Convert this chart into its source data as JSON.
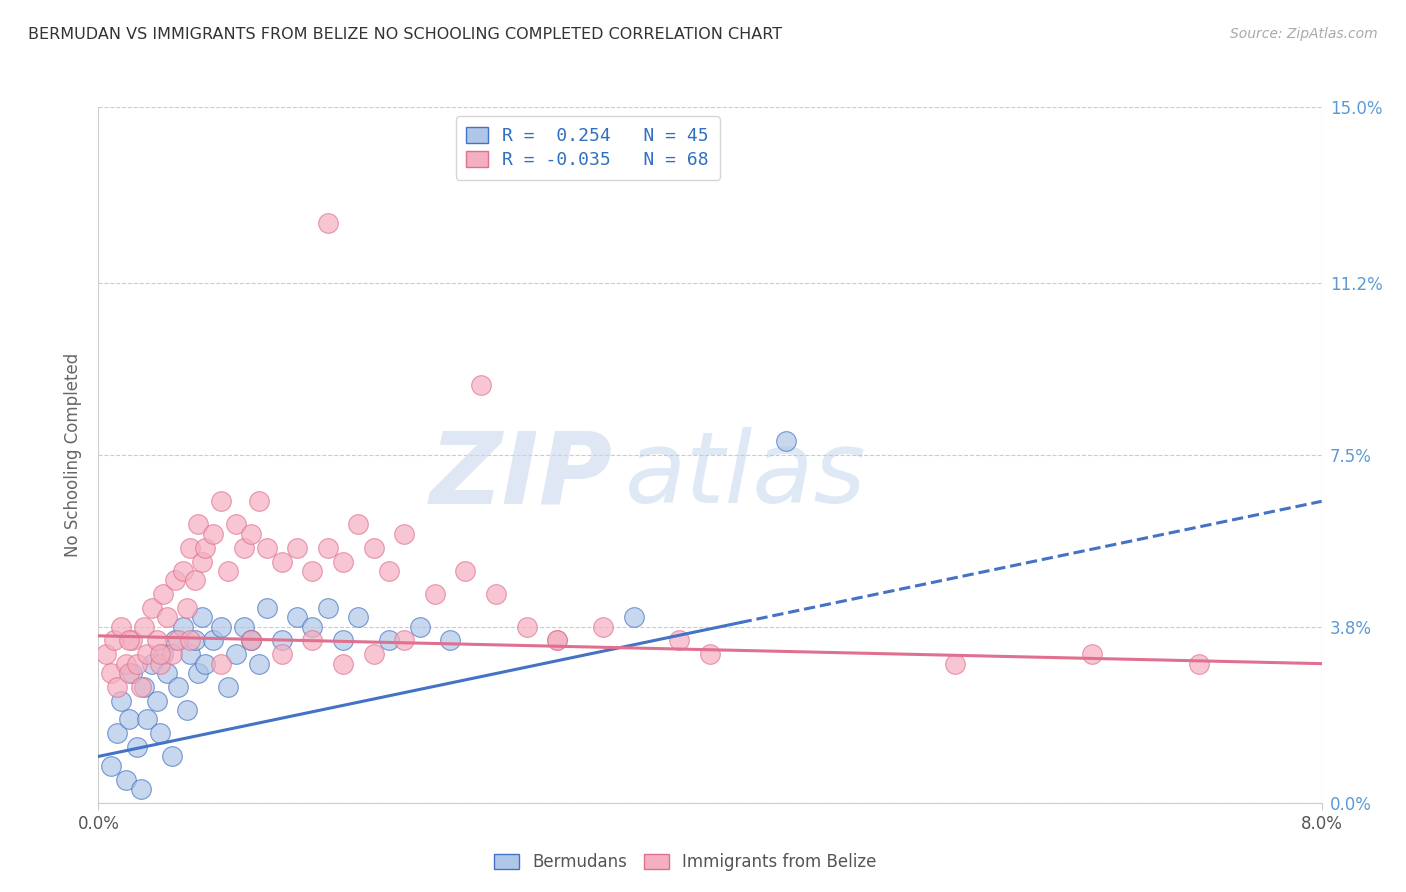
{
  "title": "BERMUDAN VS IMMIGRANTS FROM BELIZE NO SCHOOLING COMPLETED CORRELATION CHART",
  "source": "Source: ZipAtlas.com",
  "xlabel_ticks": [
    "0.0%",
    "8.0%"
  ],
  "ylabel_label": "No Schooling Completed",
  "ylabel_ticks": [
    "0.0%",
    "3.8%",
    "7.5%",
    "11.2%",
    "15.0%"
  ],
  "ylabel_values": [
    0.0,
    3.8,
    7.5,
    11.2,
    15.0
  ],
  "xlim": [
    0.0,
    8.0
  ],
  "ylim": [
    0.0,
    15.0
  ],
  "legend_entry1": "R =  0.254   N = 45",
  "legend_entry2": "R = -0.035   N = 68",
  "legend_label1": "Bermudans",
  "legend_label2": "Immigrants from Belize",
  "color_blue": "#aec6e8",
  "color_pink": "#f4afc0",
  "color_blue_line": "#4472c4",
  "color_pink_line": "#e07090",
  "color_axis_label": "#5b9bd5",
  "background_color": "#ffffff",
  "grid_color": "#cccccc",
  "blue_line_x0": 0.0,
  "blue_line_y0": 1.0,
  "blue_line_x1": 8.0,
  "blue_line_y1": 6.5,
  "blue_solid_end": 4.2,
  "pink_line_x0": 0.0,
  "pink_line_y0": 3.6,
  "pink_line_x1": 8.0,
  "pink_line_y1": 3.0,
  "blue_scatter_x": [
    0.08,
    0.12,
    0.15,
    0.18,
    0.2,
    0.22,
    0.25,
    0.28,
    0.3,
    0.32,
    0.35,
    0.38,
    0.4,
    0.42,
    0.45,
    0.48,
    0.5,
    0.52,
    0.55,
    0.58,
    0.6,
    0.63,
    0.65,
    0.68,
    0.7,
    0.75,
    0.8,
    0.85,
    0.9,
    0.95,
    1.0,
    1.05,
    1.1,
    1.2,
    1.3,
    1.4,
    1.5,
    1.6,
    1.7,
    1.9,
    2.1,
    2.3,
    3.5,
    4.5,
    1.0
  ],
  "blue_scatter_y": [
    0.8,
    1.5,
    2.2,
    0.5,
    1.8,
    2.8,
    1.2,
    0.3,
    2.5,
    1.8,
    3.0,
    2.2,
    1.5,
    3.2,
    2.8,
    1.0,
    3.5,
    2.5,
    3.8,
    2.0,
    3.2,
    3.5,
    2.8,
    4.0,
    3.0,
    3.5,
    3.8,
    2.5,
    3.2,
    3.8,
    3.5,
    3.0,
    4.2,
    3.5,
    4.0,
    3.8,
    4.2,
    3.5,
    4.0,
    3.5,
    3.8,
    3.5,
    4.0,
    7.8,
    3.5
  ],
  "pink_scatter_x": [
    0.05,
    0.08,
    0.1,
    0.12,
    0.15,
    0.18,
    0.2,
    0.22,
    0.25,
    0.28,
    0.3,
    0.32,
    0.35,
    0.38,
    0.4,
    0.42,
    0.45,
    0.48,
    0.5,
    0.52,
    0.55,
    0.58,
    0.6,
    0.63,
    0.65,
    0.68,
    0.7,
    0.75,
    0.8,
    0.85,
    0.9,
    0.95,
    1.0,
    1.05,
    1.1,
    1.2,
    1.3,
    1.4,
    1.5,
    1.6,
    1.7,
    1.8,
    1.9,
    2.0,
    2.2,
    2.4,
    2.6,
    2.8,
    3.0,
    3.3,
    3.8,
    5.6,
    0.2,
    0.4,
    0.6,
    0.8,
    1.0,
    1.2,
    1.4,
    1.6,
    1.8,
    2.0,
    2.5,
    3.0,
    4.0,
    6.5,
    7.2,
    1.5
  ],
  "pink_scatter_y": [
    3.2,
    2.8,
    3.5,
    2.5,
    3.8,
    3.0,
    2.8,
    3.5,
    3.0,
    2.5,
    3.8,
    3.2,
    4.2,
    3.5,
    3.0,
    4.5,
    4.0,
    3.2,
    4.8,
    3.5,
    5.0,
    4.2,
    5.5,
    4.8,
    6.0,
    5.2,
    5.5,
    5.8,
    6.5,
    5.0,
    6.0,
    5.5,
    5.8,
    6.5,
    5.5,
    5.2,
    5.5,
    5.0,
    5.5,
    5.2,
    6.0,
    5.5,
    5.0,
    5.8,
    4.5,
    5.0,
    4.5,
    3.8,
    3.5,
    3.8,
    3.5,
    3.0,
    3.5,
    3.2,
    3.5,
    3.0,
    3.5,
    3.2,
    3.5,
    3.0,
    3.2,
    3.5,
    9.0,
    3.5,
    3.2,
    3.2,
    3.0,
    12.5
  ]
}
